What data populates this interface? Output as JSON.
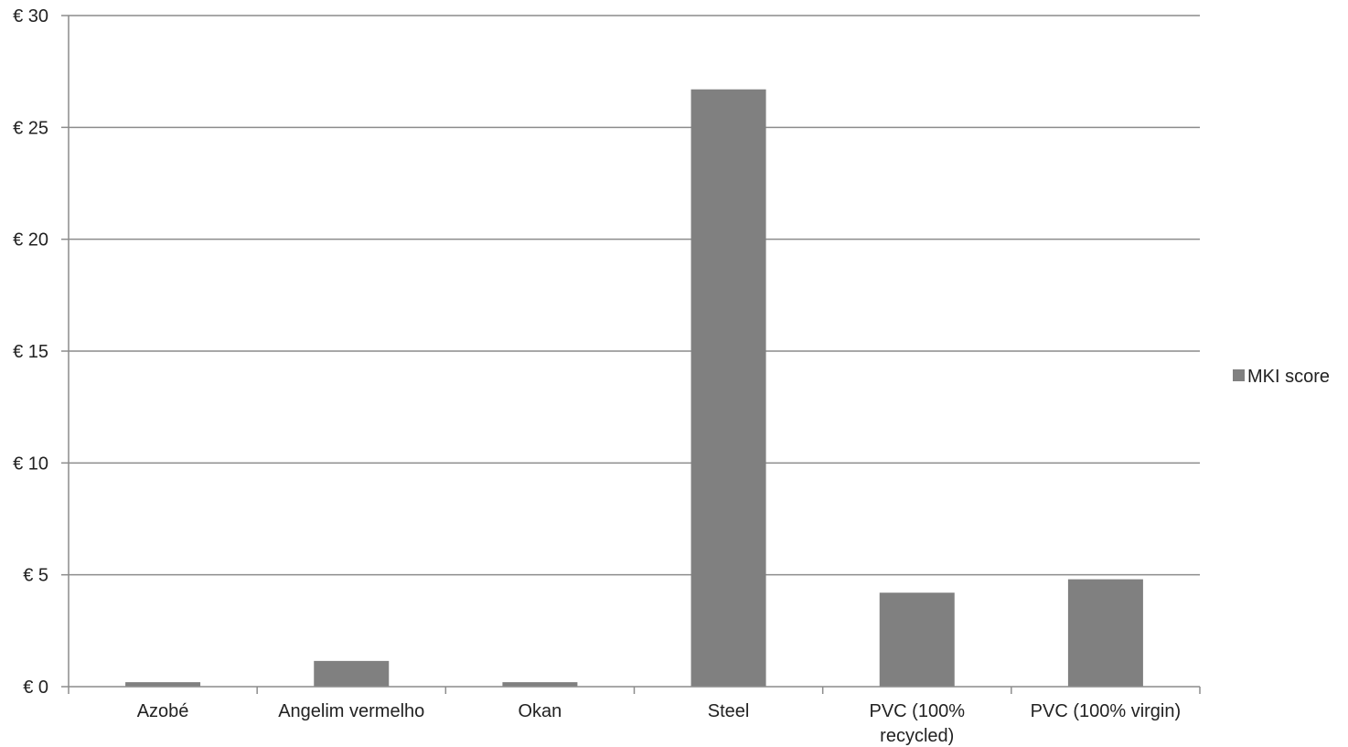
{
  "chart_data": {
    "type": "bar",
    "categories": [
      "Azobé",
      "Angelim vermelho",
      "Okan",
      "Steel",
      "PVC (100% recycled)",
      "PVC (100% virgin)"
    ],
    "category_label_lines": [
      [
        "Azobé"
      ],
      [
        "Angelim vermelho"
      ],
      [
        "Okan"
      ],
      [
        "Steel"
      ],
      [
        "PVC (100%",
        "recycled)"
      ],
      [
        "PVC (100% virgin)"
      ]
    ],
    "series": [
      {
        "name": "MKI score",
        "values": [
          0.2,
          1.15,
          0.2,
          26.7,
          4.2,
          4.8
        ]
      }
    ],
    "y_tick_labels": [
      "€ 0",
      "€ 5",
      "€ 10",
      "€ 15",
      "€ 20",
      "€ 25",
      "€ 30"
    ],
    "y_ticks": [
      0,
      5,
      10,
      15,
      20,
      25,
      30
    ],
    "ylim": [
      0,
      30
    ],
    "grid": true,
    "legend_position": "right",
    "colors": {
      "bar": "#808080",
      "grid": "#8c8c8c",
      "axis": "#8c8c8c"
    }
  }
}
